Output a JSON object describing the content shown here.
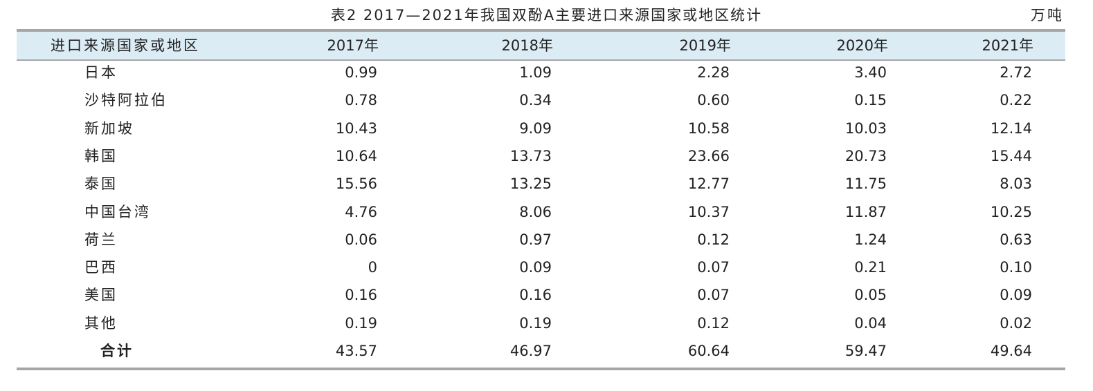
{
  "title": "表2  2017—2021年我国双酚A主要进口来源国家或地区统计",
  "unit": "万吨",
  "table": {
    "header": [
      "进口来源国家或地区",
      "2017年",
      "2018年",
      "2019年",
      "2020年",
      "2021年"
    ],
    "rows": [
      [
        "日本",
        "0.99",
        "1.09",
        "2.28",
        "3.40",
        "2.72"
      ],
      [
        "沙特阿拉伯",
        "0.78",
        "0.34",
        "0.60",
        "0.15",
        "0.22"
      ],
      [
        "新加坡",
        "10.43",
        "9.09",
        "10.58",
        "10.03",
        "12.14"
      ],
      [
        "韩国",
        "10.64",
        "13.73",
        "23.66",
        "20.73",
        "15.44"
      ],
      [
        "泰国",
        "15.56",
        "13.25",
        "12.77",
        "11.75",
        "8.03"
      ],
      [
        "中国台湾",
        "4.76",
        "8.06",
        "10.37",
        "11.87",
        "10.25"
      ],
      [
        "荷兰",
        "0.06",
        "0.97",
        "0.12",
        "1.24",
        "0.63"
      ],
      [
        "巴西",
        "0",
        "0.09",
        "0.07",
        "0.21",
        "0.10"
      ],
      [
        "美国",
        "0.16",
        "0.16",
        "0.07",
        "0.05",
        "0.09"
      ],
      [
        "其他",
        "0.19",
        "0.19",
        "0.12",
        "0.04",
        "0.02"
      ]
    ],
    "total": [
      "合计",
      "43.57",
      "46.97",
      "60.64",
      "59.47",
      "49.64"
    ]
  }
}
